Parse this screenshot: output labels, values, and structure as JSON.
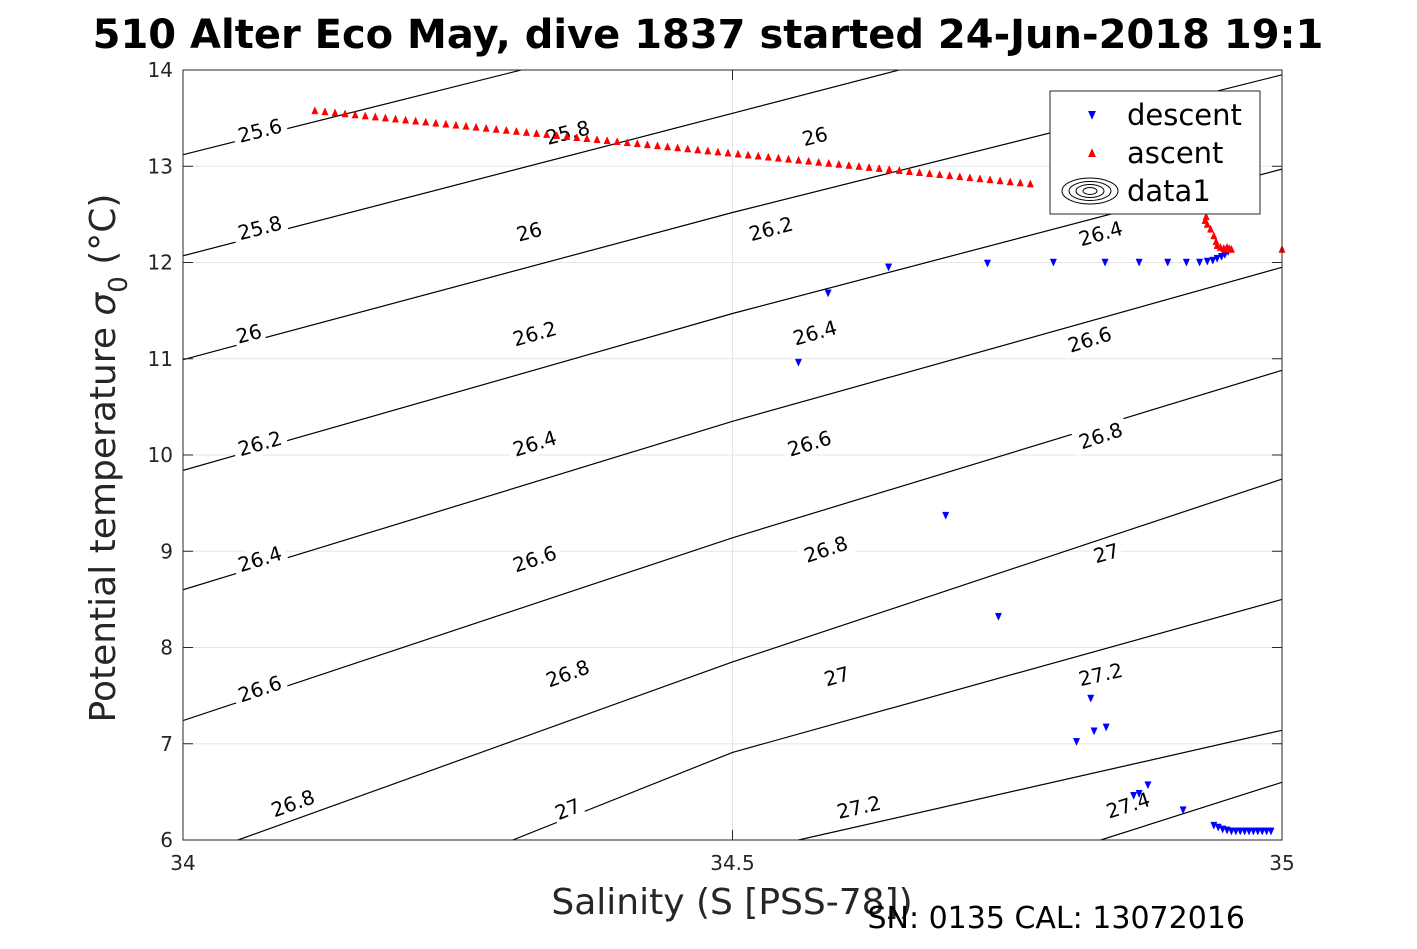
{
  "chart_data": {
    "type": "scatter",
    "title": "510 Alter Eco May, dive 1837 started 24-Jun-2018 19:1",
    "xlabel": "Salinity (S [PSS-78])",
    "ylabel_main": "Potential temperature ",
    "ylabel_symbol": "σ",
    "ylabel_sub": "0",
    "ylabel_unit": " (°C)",
    "footer": "SN: 0135  CAL: 13072016",
    "xlim": [
      34,
      35
    ],
    "ylim": [
      6,
      14
    ],
    "xticks": [
      34,
      34.5,
      35
    ],
    "xtick_labels": [
      "34",
      "34.5",
      "35"
    ],
    "yticks": [
      6,
      7,
      8,
      9,
      10,
      11,
      12,
      13,
      14
    ],
    "ytick_labels": [
      "6",
      "7",
      "8",
      "9",
      "10",
      "11",
      "12",
      "13",
      "14"
    ],
    "grid": "major",
    "legend_position": "top-right",
    "contour_levels": [
      25.6,
      25.8,
      26,
      26.2,
      26.4,
      26.6,
      26.8,
      27,
      27.2,
      27.4
    ],
    "contour_lines": [
      {
        "level": 25.6,
        "label": "25.6",
        "points": [
          [
            34.0,
            13.12
          ],
          [
            34.5,
            14.55
          ]
        ]
      },
      {
        "level": 25.8,
        "label": "25.8",
        "points": [
          [
            34.0,
            12.07
          ],
          [
            34.5,
            13.55
          ],
          [
            34.955,
            14.9
          ]
        ]
      },
      {
        "level": 26,
        "label": "26",
        "points": [
          [
            34.0,
            10.99
          ],
          [
            34.5,
            12.52
          ],
          [
            35.0,
            13.95
          ]
        ]
      },
      {
        "level": 26.2,
        "label": "26.2",
        "points": [
          [
            34.0,
            9.84
          ],
          [
            34.5,
            11.47
          ],
          [
            35.0,
            12.97
          ]
        ]
      },
      {
        "level": 26.4,
        "label": "26.4",
        "points": [
          [
            34.0,
            8.6
          ],
          [
            34.5,
            10.35
          ],
          [
            35.0,
            11.95
          ]
        ]
      },
      {
        "level": 26.6,
        "label": "26.6",
        "points": [
          [
            34.0,
            7.24
          ],
          [
            34.5,
            9.14
          ],
          [
            35.0,
            10.88
          ]
        ]
      },
      {
        "level": 26.8,
        "label": "26.8",
        "points": [
          [
            34.05,
            6.0
          ],
          [
            34.5,
            7.85
          ],
          [
            35.0,
            9.75
          ]
        ]
      },
      {
        "level": 27,
        "label": "27",
        "points": [
          [
            34.3,
            6.0
          ],
          [
            34.5,
            6.91
          ],
          [
            35.0,
            8.5
          ]
        ]
      },
      {
        "level": 27.2,
        "label": "27.2",
        "points": [
          [
            34.56,
            6.0
          ],
          [
            35.0,
            7.14
          ]
        ]
      },
      {
        "level": 27.4,
        "label": "27.4",
        "points": [
          [
            34.835,
            6.0
          ],
          [
            35.0,
            6.6
          ]
        ]
      }
    ],
    "contour_labels": [
      {
        "text": "25.6",
        "x": 34.07,
        "y": 13.37
      },
      {
        "text": "25.8",
        "x": 34.35,
        "y": 13.35
      },
      {
        "text": "26",
        "x": 34.575,
        "y": 13.31
      },
      {
        "text": "25.8",
        "x": 34.07,
        "y": 12.36
      },
      {
        "text": "26",
        "x": 34.315,
        "y": 12.32
      },
      {
        "text": "26.2",
        "x": 34.535,
        "y": 12.35
      },
      {
        "text": "26.4",
        "x": 34.835,
        "y": 12.3
      },
      {
        "text": "26",
        "x": 34.06,
        "y": 11.26
      },
      {
        "text": "26.2",
        "x": 34.32,
        "y": 11.26
      },
      {
        "text": "26.4",
        "x": 34.575,
        "y": 11.27
      },
      {
        "text": "26.6",
        "x": 34.825,
        "y": 11.2
      },
      {
        "text": "26.2",
        "x": 34.07,
        "y": 10.12
      },
      {
        "text": "26.4",
        "x": 34.32,
        "y": 10.12
      },
      {
        "text": "26.6",
        "x": 34.57,
        "y": 10.12
      },
      {
        "text": "26.8",
        "x": 34.835,
        "y": 10.2
      },
      {
        "text": "26.4",
        "x": 34.07,
        "y": 8.92
      },
      {
        "text": "26.6",
        "x": 34.32,
        "y": 8.92
      },
      {
        "text": "26.8",
        "x": 34.585,
        "y": 9.02
      },
      {
        "text": "27",
        "x": 34.84,
        "y": 8.98
      },
      {
        "text": "26.6",
        "x": 34.07,
        "y": 7.57
      },
      {
        "text": "26.8",
        "x": 34.35,
        "y": 7.73
      },
      {
        "text": "27",
        "x": 34.595,
        "y": 7.7
      },
      {
        "text": "27.2",
        "x": 34.835,
        "y": 7.72
      },
      {
        "text": "26.8",
        "x": 34.1,
        "y": 6.38
      },
      {
        "text": "27",
        "x": 34.35,
        "y": 6.32
      },
      {
        "text": "27.2",
        "x": 34.615,
        "y": 6.34
      },
      {
        "text": "27.4",
        "x": 34.86,
        "y": 6.36
      }
    ],
    "series": [
      {
        "name": "descent",
        "marker": "triangle-down",
        "color": "#0000ff",
        "points": [
          [
            34.56,
            10.96
          ],
          [
            34.587,
            11.68
          ],
          [
            34.642,
            11.95
          ],
          [
            34.732,
            11.99
          ],
          [
            34.792,
            12.0
          ],
          [
            34.839,
            12.0
          ],
          [
            34.87,
            12.0
          ],
          [
            34.896,
            12.0
          ],
          [
            34.913,
            12.0
          ],
          [
            34.925,
            12.0
          ],
          [
            34.932,
            12.01
          ],
          [
            34.937,
            12.02
          ],
          [
            34.941,
            12.04
          ],
          [
            34.945,
            12.06
          ],
          [
            34.948,
            12.08
          ],
          [
            34.951,
            12.11
          ],
          [
            34.694,
            9.37
          ],
          [
            34.742,
            8.32
          ],
          [
            34.826,
            7.47
          ],
          [
            34.813,
            7.02
          ],
          [
            34.829,
            7.13
          ],
          [
            34.84,
            7.17
          ],
          [
            34.878,
            6.57
          ],
          [
            34.87,
            6.48
          ],
          [
            34.865,
            6.46
          ],
          [
            34.91,
            6.31
          ],
          [
            34.938,
            6.15
          ],
          [
            34.942,
            6.13
          ],
          [
            34.946,
            6.11
          ],
          [
            34.95,
            6.1
          ],
          [
            34.954,
            6.09
          ],
          [
            34.958,
            6.09
          ],
          [
            34.962,
            6.09
          ],
          [
            34.966,
            6.09
          ],
          [
            34.97,
            6.09
          ],
          [
            34.974,
            6.09
          ],
          [
            34.978,
            6.09
          ],
          [
            34.982,
            6.09
          ],
          [
            34.986,
            6.09
          ],
          [
            34.99,
            6.09
          ]
        ]
      },
      {
        "name": "ascent",
        "marker": "triangle-up",
        "color": "#ff0000",
        "points_from": [
          34.12,
          13.58
        ],
        "points_to": [
          34.771,
          12.82
        ],
        "points_count": 72,
        "points_extra": [
          [
            34.93,
            12.44
          ],
          [
            34.931,
            12.48
          ],
          [
            34.932,
            12.4
          ],
          [
            34.935,
            12.35
          ],
          [
            34.938,
            12.28
          ],
          [
            34.94,
            12.22
          ],
          [
            34.941,
            12.18
          ],
          [
            34.944,
            12.16
          ],
          [
            34.947,
            12.15
          ],
          [
            34.949,
            12.14
          ],
          [
            34.95,
            12.16
          ],
          [
            34.952,
            12.15
          ],
          [
            34.954,
            12.14
          ],
          [
            35.0,
            12.14
          ]
        ]
      }
    ],
    "legend": [
      {
        "label": "descent",
        "marker": "triangle-down",
        "color": "#0000ff"
      },
      {
        "label": "ascent",
        "marker": "triangle-up",
        "color": "#ff0000"
      },
      {
        "label": "data1",
        "marker": "contour-ellipses",
        "color": "#000000"
      }
    ]
  }
}
